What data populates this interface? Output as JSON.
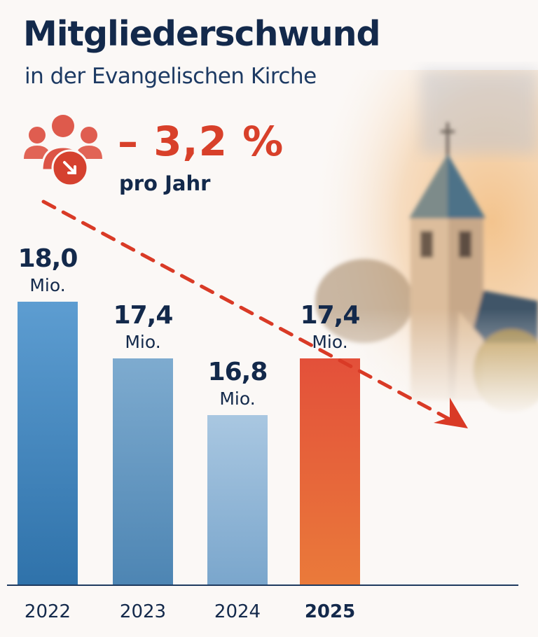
{
  "header": {
    "title": "Mitgliederschwund",
    "subtitle": "in der Evangelischen Kirche"
  },
  "stat": {
    "value": "– 3,2 %",
    "caption": "pro Jahr",
    "icon": "people-decline-icon",
    "color": "#d8402a"
  },
  "chart_data": {
    "type": "bar",
    "categories": [
      "2022",
      "2023",
      "2024",
      "2025"
    ],
    "values": [
      18.0,
      17.4,
      16.8,
      17.4
    ],
    "value_labels": [
      "18,0",
      "17,4",
      "16,8",
      "17,4"
    ],
    "unit_label": "Mio.",
    "highlight_category": "2025",
    "colors": [
      "#3f82bb",
      "#5f93c0",
      "#8fb4d6",
      "#e4553a"
    ],
    "ylim": [
      15,
      18
    ],
    "grid": false,
    "trend_arrow": "dashed red arrow pointing down-right"
  }
}
